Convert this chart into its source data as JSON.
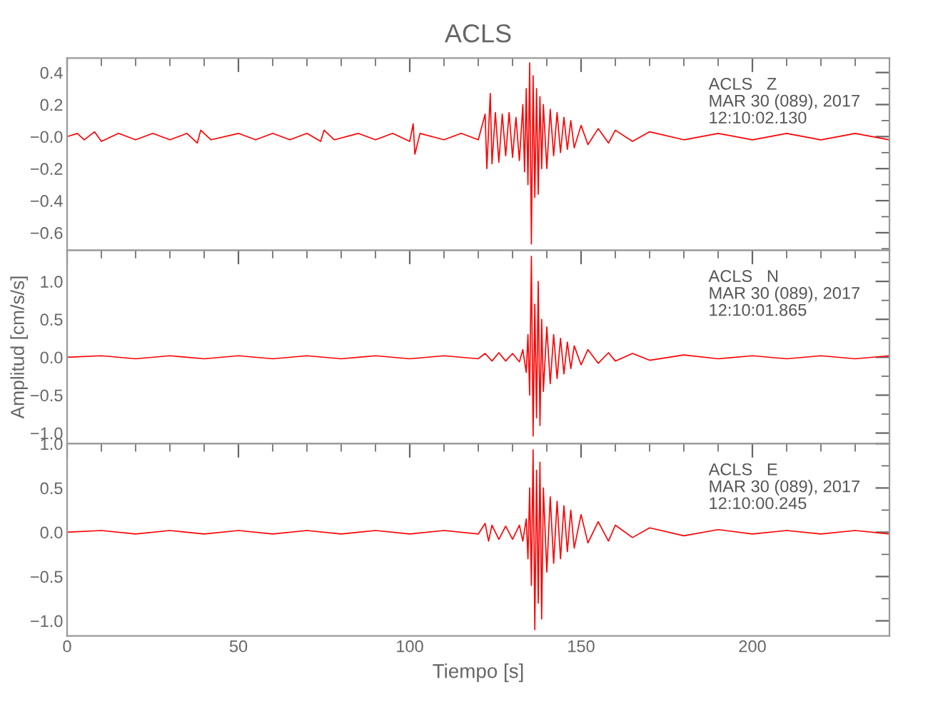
{
  "chart_data": [
    {
      "type": "line",
      "title": "ACLS",
      "xlim": [
        0,
        240
      ],
      "ylim": [
        -0.71,
        0.49
      ],
      "yticks": [
        0.4,
        0.2,
        {
          "value": 0,
          "label": "−0.0"
        },
        {
          "value": -0.2,
          "label": "−0.2"
        },
        {
          "value": -0.4,
          "label": "−0.4"
        },
        {
          "value": -0.6,
          "label": "−0.6"
        }
      ],
      "tick_labels": "y",
      "grid": false,
      "legend": false,
      "annotations": [
        "ACLS   Z\nMAR 30 (089), 2017\n12:10:02.130"
      ],
      "series": [
        {
          "color": "#ff0000",
          "x": [
            0,
            3,
            5,
            8,
            10,
            15,
            20,
            25,
            30,
            35,
            38,
            39,
            42,
            50,
            55,
            60,
            65,
            70,
            74,
            75,
            78,
            85,
            90,
            95,
            100,
            101,
            101.5,
            103,
            110,
            115,
            120,
            122,
            122.5,
            123.5,
            124,
            125,
            126,
            127,
            128,
            129,
            130,
            131,
            132,
            133,
            133.5,
            134,
            134.5,
            135,
            135.5,
            136,
            136.5,
            137,
            137.5,
            138,
            138.5,
            139,
            140,
            141,
            142,
            143,
            144,
            145,
            146,
            147,
            148,
            150,
            152,
            155,
            158,
            160,
            165,
            170,
            180,
            190,
            200,
            210,
            220,
            230,
            240
          ],
          "values": [
            0,
            0.02,
            -0.02,
            0.03,
            -0.03,
            0.02,
            -0.02,
            0.02,
            -0.02,
            0.02,
            -0.04,
            0.04,
            -0.02,
            0.02,
            -0.02,
            0.02,
            -0.02,
            0.02,
            -0.03,
            0.04,
            -0.02,
            0.02,
            -0.02,
            0.02,
            -0.03,
            0.08,
            -0.11,
            0.02,
            -0.02,
            0.02,
            -0.02,
            0.14,
            -0.2,
            0.27,
            -0.17,
            0.15,
            -0.16,
            0.14,
            -0.12,
            0.15,
            -0.13,
            0.12,
            -0.15,
            0.2,
            -0.22,
            0.3,
            -0.3,
            0.46,
            -0.67,
            0.38,
            -0.38,
            0.3,
            -0.36,
            0.25,
            -0.2,
            0.2,
            -0.2,
            0.17,
            -0.12,
            0.15,
            -0.1,
            0.12,
            -0.08,
            0.1,
            -0.07,
            0.07,
            -0.05,
            0.05,
            -0.04,
            0.04,
            -0.03,
            0.03,
            -0.02,
            0.02,
            -0.02,
            0.02,
            -0.02,
            0.02,
            -0.02
          ]
        }
      ]
    },
    {
      "type": "line",
      "ylabel": "Amplitud [cm/s/s]",
      "xlim": [
        0,
        240
      ],
      "ylim": [
        -1.14,
        1.41
      ],
      "yticks": [
        {
          "value": 1,
          "label": "1.0"
        },
        0.5,
        {
          "value": 0,
          "label": "0.0"
        },
        {
          "value": -0.5,
          "label": "−0.5"
        },
        {
          "value": -1,
          "label": "−1.0"
        }
      ],
      "tick_labels": "y",
      "grid": false,
      "legend": false,
      "annotations": [
        "ACLS   N\nMAR 30 (089), 2017\n12:10:01.865"
      ],
      "series": [
        {
          "color": "#ff0000",
          "x": [
            0,
            10,
            20,
            30,
            40,
            50,
            60,
            70,
            80,
            90,
            100,
            110,
            120,
            122,
            124,
            126,
            128,
            130,
            132,
            133,
            134,
            134.5,
            135,
            135.5,
            136,
            136.5,
            137,
            137.5,
            138,
            138.5,
            139,
            140,
            141,
            142,
            143,
            144,
            145,
            146,
            147,
            148,
            150,
            152,
            155,
            158,
            160,
            165,
            170,
            180,
            190,
            200,
            210,
            220,
            230,
            240
          ],
          "values": [
            0,
            0.02,
            -0.02,
            0.02,
            -0.02,
            0.02,
            -0.02,
            0.02,
            -0.02,
            0.02,
            -0.02,
            0.02,
            -0.02,
            0.05,
            -0.05,
            0.06,
            -0.05,
            0.05,
            -0.06,
            0.1,
            -0.2,
            0.3,
            -0.5,
            1.33,
            -1.04,
            0.7,
            -0.8,
            1.0,
            -0.9,
            0.5,
            -0.45,
            0.4,
            -0.35,
            0.3,
            -0.28,
            0.25,
            -0.22,
            0.2,
            -0.15,
            0.15,
            -0.1,
            0.1,
            -0.08,
            0.06,
            -0.05,
            0.05,
            -0.04,
            0.03,
            -0.02,
            0.02,
            -0.02,
            0.02,
            -0.02,
            0.02
          ]
        }
      ]
    },
    {
      "type": "line",
      "xlabel": "Tiempo [s]",
      "xlim": [
        0,
        240
      ],
      "xticks": [
        0,
        50,
        100,
        150,
        200
      ],
      "ylim": [
        -1.17,
        1.0
      ],
      "yticks": [
        {
          "value": 1,
          "label": "1.0"
        },
        0.5,
        {
          "value": 0,
          "label": "0.0"
        },
        {
          "value": -0.5,
          "label": "−0.5"
        },
        {
          "value": -1,
          "label": "−1.0"
        }
      ],
      "grid": false,
      "legend": false,
      "annotations": [
        "ACLS   E\nMAR 30 (089), 2017\n12:10:00.245"
      ],
      "series": [
        {
          "color": "#ff0000",
          "x": [
            0,
            10,
            20,
            30,
            40,
            50,
            60,
            70,
            80,
            90,
            100,
            110,
            120,
            122,
            123,
            124,
            126,
            128,
            130,
            132,
            133,
            134,
            134.5,
            135,
            135.5,
            136,
            136.5,
            137,
            137.5,
            138,
            138.5,
            139,
            140,
            141,
            142,
            143,
            144,
            145,
            146,
            147,
            148,
            150,
            152,
            155,
            158,
            160,
            165,
            170,
            180,
            190,
            200,
            210,
            220,
            230,
            240
          ],
          "values": [
            0,
            0.02,
            -0.02,
            0.02,
            -0.02,
            0.02,
            -0.02,
            0.02,
            -0.02,
            0.02,
            -0.02,
            0.02,
            -0.02,
            0.1,
            -0.1,
            0.08,
            -0.08,
            0.07,
            -0.08,
            0.08,
            -0.1,
            0.15,
            -0.3,
            0.5,
            -0.6,
            0.93,
            -1.1,
            0.7,
            -0.8,
            0.79,
            -0.98,
            0.5,
            -0.45,
            0.4,
            -0.35,
            0.35,
            -0.3,
            0.3,
            -0.22,
            0.25,
            -0.18,
            0.2,
            -0.12,
            0.12,
            -0.1,
            0.08,
            -0.06,
            0.05,
            -0.04,
            0.03,
            -0.02,
            0.02,
            -0.02,
            0.02,
            -0.02
          ]
        }
      ]
    }
  ]
}
